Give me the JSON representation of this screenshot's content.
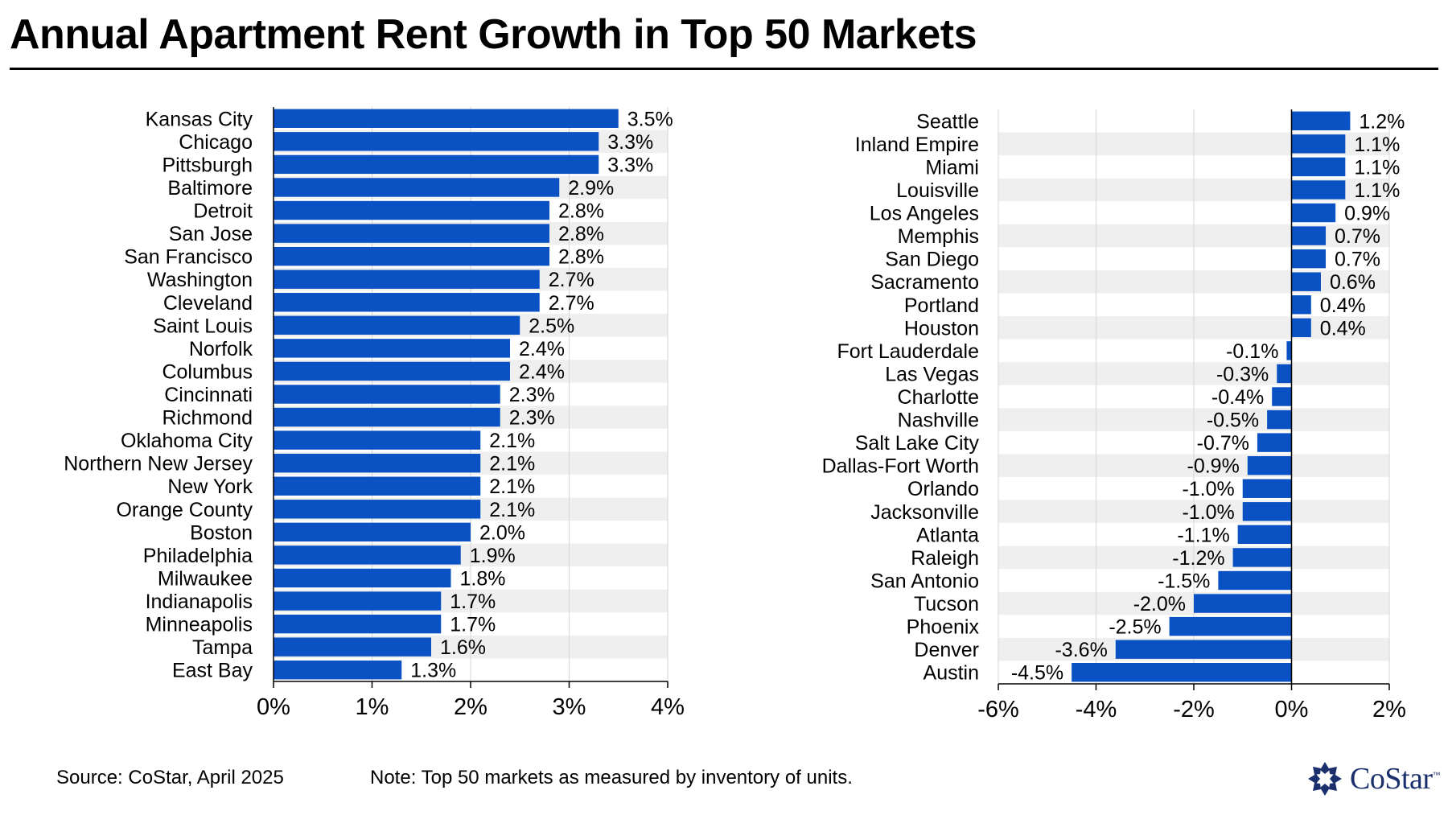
{
  "title": "Annual Apartment Rent Growth in Top 50 Markets",
  "colors": {
    "bar": "#0a52c4",
    "band": "#efefef",
    "grid": "#d6d6d6",
    "axis": "#000000",
    "logo": "#1a2f6b"
  },
  "chart_data": [
    {
      "type": "bar",
      "orientation": "horizontal",
      "categories": [
        "Kansas City",
        "Chicago",
        "Pittsburgh",
        "Baltimore",
        "Detroit",
        "San Jose",
        "San Francisco",
        "Washington",
        "Cleveland",
        "Saint Louis",
        "Norfolk",
        "Columbus",
        "Cincinnati",
        "Richmond",
        "Oklahoma City",
        "Northern New Jersey",
        "New York",
        "Orange County",
        "Boston",
        "Philadelphia",
        "Milwaukee",
        "Indianapolis",
        "Minneapolis",
        "Tampa",
        "East Bay"
      ],
      "values": [
        3.5,
        3.3,
        3.3,
        2.9,
        2.8,
        2.8,
        2.8,
        2.7,
        2.7,
        2.5,
        2.4,
        2.4,
        2.3,
        2.3,
        2.1,
        2.1,
        2.1,
        2.1,
        2.0,
        1.9,
        1.8,
        1.7,
        1.7,
        1.6,
        1.3
      ],
      "labels": [
        "3.5%",
        "3.3%",
        "3.3%",
        "2.9%",
        "2.8%",
        "2.8%",
        "2.8%",
        "2.7%",
        "2.7%",
        "2.5%",
        "2.4%",
        "2.4%",
        "2.3%",
        "2.3%",
        "2.1%",
        "2.1%",
        "2.1%",
        "2.1%",
        "2.0%",
        "1.9%",
        "1.8%",
        "1.7%",
        "1.7%",
        "1.6%",
        "1.3%"
      ],
      "xlim": [
        0,
        4
      ],
      "ticks": [
        0,
        1,
        2,
        3,
        4
      ],
      "tick_labels": [
        "0%",
        "1%",
        "2%",
        "3%",
        "4%"
      ],
      "xlabel": "",
      "ylabel": ""
    },
    {
      "type": "bar",
      "orientation": "horizontal",
      "categories": [
        "Seattle",
        "Inland Empire",
        "Miami",
        "Louisville",
        "Los Angeles",
        "Memphis",
        "San Diego",
        "Sacramento",
        "Portland",
        "Houston",
        "Fort Lauderdale",
        "Las Vegas",
        "Charlotte",
        "Nashville",
        "Salt Lake City",
        "Dallas-Fort Worth",
        "Orlando",
        "Jacksonville",
        "Atlanta",
        "Raleigh",
        "San Antonio",
        "Tucson",
        "Phoenix",
        "Denver",
        "Austin"
      ],
      "values": [
        1.2,
        1.1,
        1.1,
        1.1,
        0.9,
        0.7,
        0.7,
        0.6,
        0.4,
        0.4,
        -0.1,
        -0.3,
        -0.4,
        -0.5,
        -0.7,
        -0.9,
        -1.0,
        -1.0,
        -1.1,
        -1.2,
        -1.5,
        -2.0,
        -2.5,
        -3.6,
        -4.5
      ],
      "labels": [
        "1.2%",
        "1.1%",
        "1.1%",
        "1.1%",
        "0.9%",
        "0.7%",
        "0.7%",
        "0.6%",
        "0.4%",
        "0.4%",
        "-0.1%",
        "-0.3%",
        "-0.4%",
        "-0.5%",
        "-0.7%",
        "-0.9%",
        "-1.0%",
        "-1.0%",
        "-1.1%",
        "-1.2%",
        "-1.5%",
        "-2.0%",
        "-2.5%",
        "-3.6%",
        "-4.5%"
      ],
      "xlim": [
        -6,
        2
      ],
      "ticks": [
        -6,
        -4,
        -2,
        0,
        2
      ],
      "tick_labels": [
        "-6%",
        "-4%",
        "-2%",
        "0%",
        "2%"
      ],
      "xlabel": "",
      "ylabel": ""
    }
  ],
  "footer": {
    "source": "Source: CoStar, April 2025",
    "note": "Note: Top 50 markets as measured by inventory of units."
  },
  "logo": {
    "text": "CoStar",
    "tm": "™"
  }
}
